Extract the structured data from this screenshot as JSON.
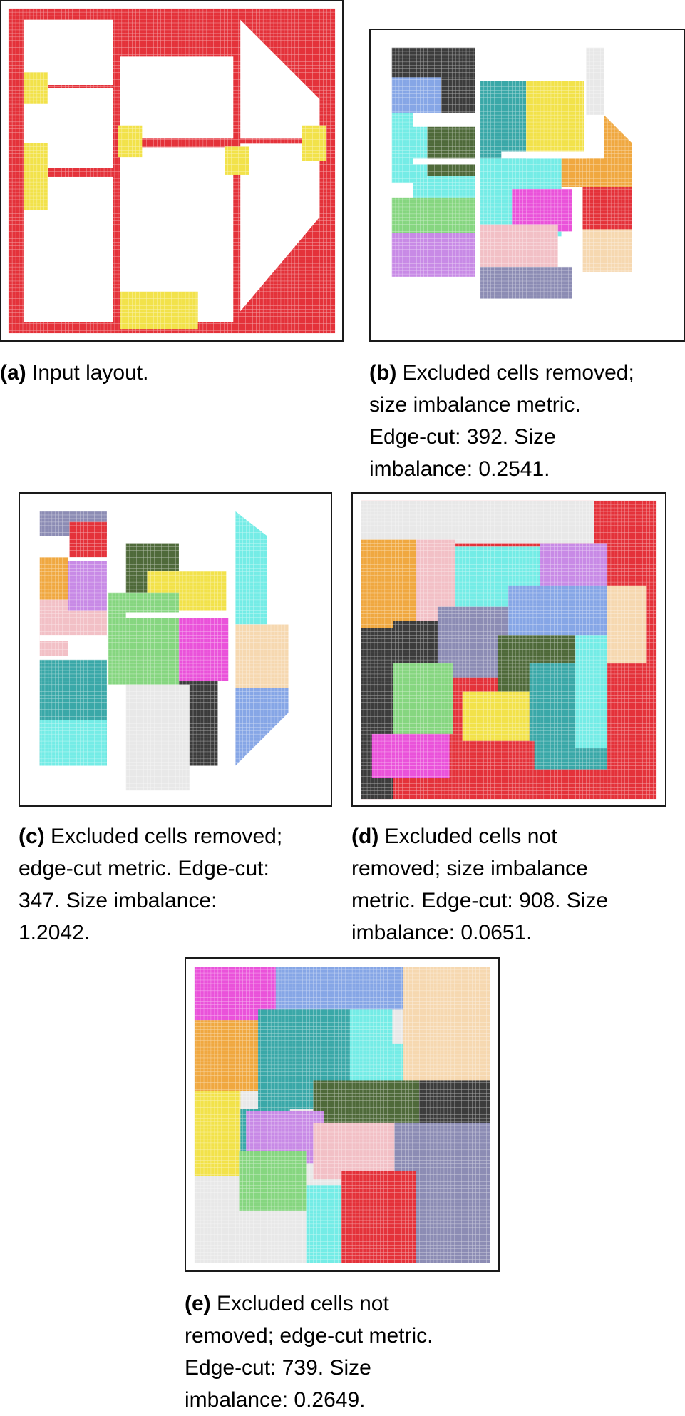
{
  "figure": {
    "panels": [
      {
        "id": "a",
        "label": "(a)",
        "caption": "Input layout."
      },
      {
        "id": "b",
        "label": "(b)",
        "caption_lines": [
          "Excluded cells removed;",
          "size imbalance metric.",
          "Edge-cut: 392. Size",
          "imbalance: 0.2541."
        ]
      },
      {
        "id": "c",
        "label": "(c)",
        "caption_lines": [
          "Excluded cells removed;",
          "edge-cut metric. Edge-cut:",
          "347. Size imbalance:",
          "1.2042."
        ]
      },
      {
        "id": "d",
        "label": "(d)",
        "caption_lines": [
          "Excluded cells not",
          "removed; size imbalance",
          "metric. Edge-cut: 908. Size",
          "imbalance: 0.0651."
        ]
      },
      {
        "id": "e",
        "label": "(e)",
        "caption_lines": [
          "Excluded cells not",
          "removed; edge-cut metric.",
          "Edge-cut: 739. Size",
          "imbalance: 0.2649."
        ]
      }
    ],
    "colors": {
      "red": "#e4323a",
      "yellow": "#f2e24a",
      "gray": "#3c3c3c",
      "blue": "#86a6e6",
      "teal": "#3aa8a8",
      "cyan": "#74ece6",
      "olive": "#4f6a3a",
      "orange": "#f0a840",
      "green": "#86d680",
      "pink": "#f2c0c6",
      "magenta": "#ea52da",
      "purple": "#c88ae6",
      "slate": "#8c8cb4",
      "peach": "#f6d8b0",
      "light": "#e8e8e8"
    }
  }
}
